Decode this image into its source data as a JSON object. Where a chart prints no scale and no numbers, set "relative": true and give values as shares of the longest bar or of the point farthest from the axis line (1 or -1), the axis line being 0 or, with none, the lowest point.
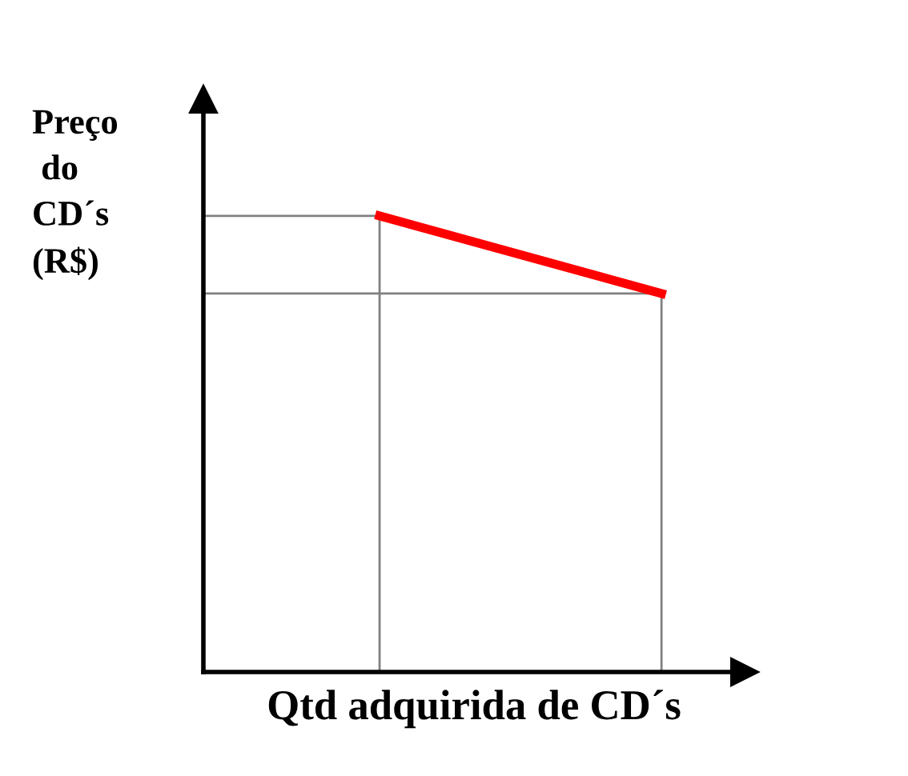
{
  "chart_data": {
    "type": "line",
    "relative": true,
    "xlabel": "Qtd adquirida de CD´s",
    "ylabel": "Preço\n do\nCD´s\n(R$)",
    "categories": [
      null,
      null
    ],
    "series": [
      {
        "color": "#ff0000",
        "values": [
          1,
          0.83
        ]
      }
    ],
    "grid": false,
    "legend": false,
    "marker": "none",
    "line_style": "solid",
    "tick_labels": false
  }
}
